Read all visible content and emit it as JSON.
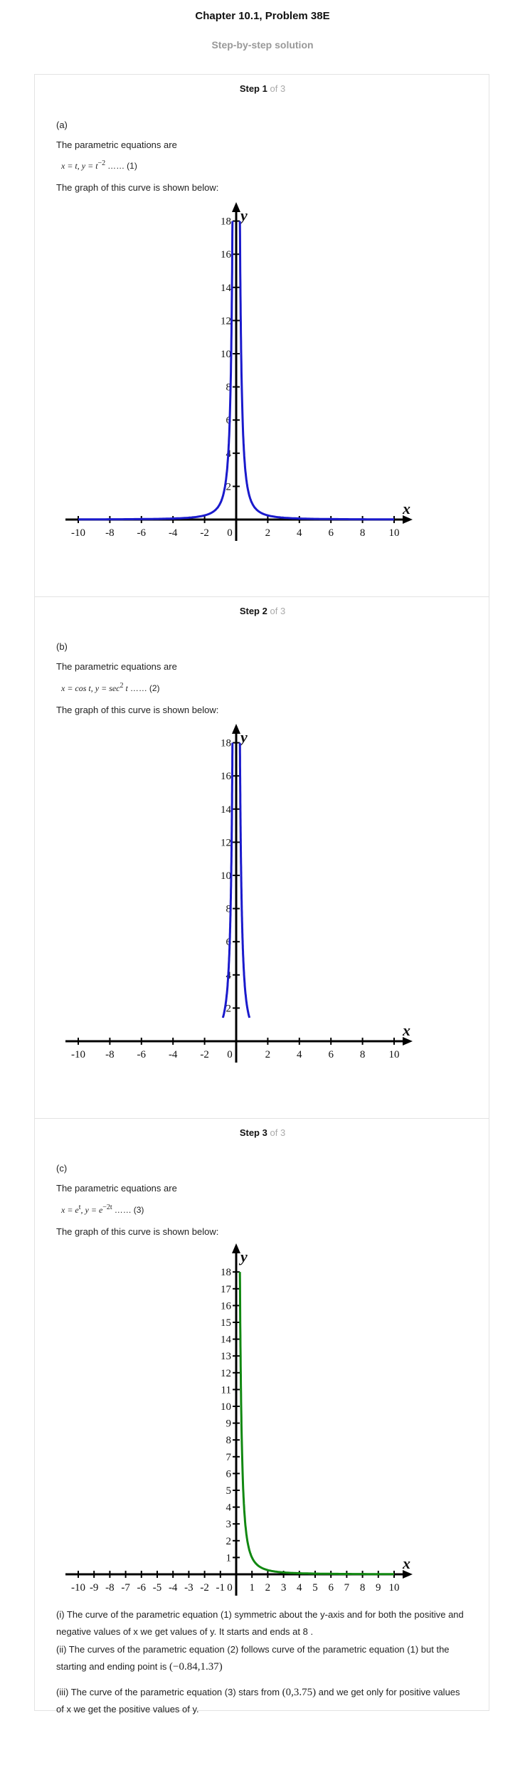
{
  "header": {
    "title": "Chapter 10.1, Problem 38E",
    "subtitle": "Step-by-step solution"
  },
  "steps": [
    {
      "word": "Step",
      "number": "1",
      "of_total": "of 3",
      "part": "(a)",
      "intro": "The parametric equations are",
      "equation": {
        "x": "x = t,",
        "y": "y = t",
        "y_exp": "−2",
        "dots": "……",
        "ref": "(1)"
      },
      "graph_caption": "The graph of this curve is shown below:"
    },
    {
      "word": "Step",
      "number": "2",
      "of_total": "of 3",
      "part": "(b)",
      "intro": "The parametric equations are",
      "equation": {
        "x": "x = cos t,",
        "y": "y = sec",
        "y_exp": "2",
        "y_tail": " t",
        "dots": "……",
        "ref": "(2)"
      },
      "graph_caption": "The graph of this curve is shown below:"
    },
    {
      "word": "Step",
      "number": "3",
      "of_total": "of 3",
      "part": "(c)",
      "intro": "The parametric equations are",
      "equation": {
        "x": "x = e",
        "x_exp": "t",
        "y": ", y = e",
        "y_exp": "−2t",
        "dots": "……",
        "ref": "(3)"
      },
      "graph_caption": "The graph of this curve is shown below:"
    }
  ],
  "conclusions": {
    "i": "(i) The curve of the parametric equation (1) symmetric about the y-axis and for both the positive and negative values of x we get values of y. It starts and ends at 8 .",
    "ii_text": "(ii) The curves of the parametric equation (2) follows curve of the parametric equation (1) but the starting and ending point is",
    "ii_point": "(−0.84,1.37)",
    "iii_a": "(iii) The curve of the parametric equation (3) stars from",
    "iii_point": "(0,3.75)",
    "iii_b": "and we get only for positive values of x we get the positive values of y."
  },
  "chart_data": [
    {
      "type": "line",
      "name_ref": "graph-a",
      "xlim": [
        -10.5,
        10.5
      ],
      "ylim": [
        0,
        18
      ],
      "x_ticks": [
        "-10",
        "-8",
        "-6",
        "-4",
        "-2",
        "0",
        "2",
        "4",
        "6",
        "8",
        "10"
      ],
      "y_ticks": [
        "2",
        "4",
        "6",
        "8",
        "10",
        "12",
        "14",
        "16",
        "18"
      ],
      "xlabel": "x",
      "ylabel": "y",
      "curve": "y = x^-2",
      "color": "#1a1acc"
    },
    {
      "type": "line",
      "name_ref": "graph-b",
      "xlim": [
        -10.5,
        10.5
      ],
      "ylim": [
        0,
        18
      ],
      "x_ticks": [
        "-10",
        "-8",
        "-6",
        "-4",
        "-2",
        "0",
        "2",
        "4",
        "6",
        "8",
        "10"
      ],
      "y_ticks": [
        "2",
        "4",
        "6",
        "8",
        "10",
        "12",
        "14",
        "16",
        "18"
      ],
      "xlabel": "x",
      "ylabel": "y",
      "curve": "y = 1/x^2 for 0.84 <= |x| ... plotted near axis",
      "color": "#1a1acc"
    },
    {
      "type": "line",
      "name_ref": "graph-c",
      "xlim": [
        -10.5,
        10.5
      ],
      "ylim": [
        0,
        18
      ],
      "x_ticks": [
        "-10",
        "-9",
        "-8",
        "-7",
        "-6",
        "-5",
        "-4",
        "-3",
        "-2",
        "-1",
        "0",
        "1",
        "2",
        "3",
        "4",
        "5",
        "6",
        "7",
        "8",
        "9",
        "10"
      ],
      "y_ticks": [
        "1",
        "2",
        "3",
        "4",
        "5",
        "6",
        "7",
        "8",
        "9",
        "10",
        "11",
        "12",
        "13",
        "14",
        "15",
        "16",
        "17",
        "18"
      ],
      "xlabel": "x",
      "ylabel": "y",
      "curve": "y = x^-2, x > 0",
      "color": "#118811"
    }
  ]
}
